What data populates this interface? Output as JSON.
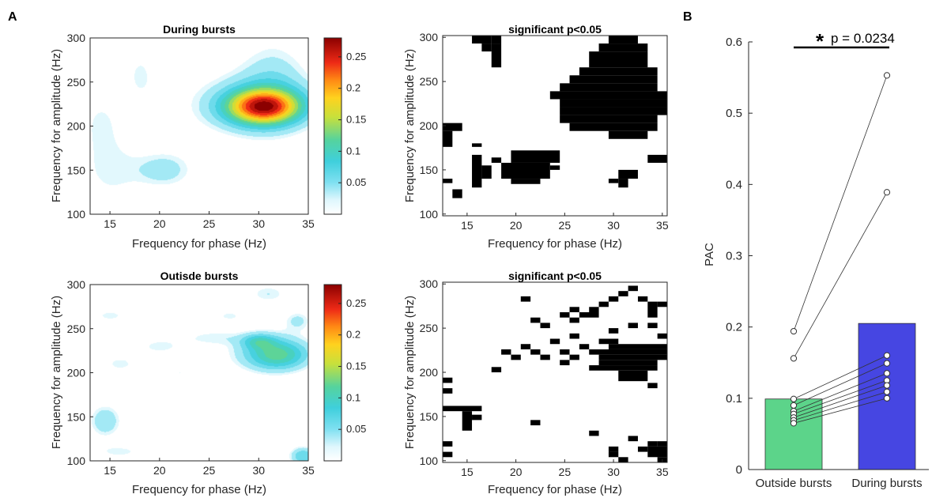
{
  "panel_labels": [
    "A",
    "B"
  ],
  "chart_data": [
    {
      "type": "heatmap",
      "title": "During bursts",
      "xlabel": "Frequency for phase (Hz)",
      "ylabel": "Frequency for amplitude (Hz)",
      "xlim": [
        13,
        35
      ],
      "ylim": [
        100,
        300
      ],
      "xticks": [
        15,
        20,
        25,
        30,
        35
      ],
      "yticks": [
        100,
        150,
        200,
        250,
        300
      ],
      "colorbar": {
        "ticks": [
          0.05,
          0.1,
          0.15,
          0.2,
          0.25
        ],
        "range": [
          0,
          0.28
        ],
        "colormap": [
          "#ffffff",
          "#bfeffc",
          "#5ad4ea",
          "#2cc6b8",
          "#9ed953",
          "#f2e12a",
          "#ffaa16",
          "#ff5516",
          "#e0161b",
          "#8b0000"
        ]
      },
      "blobs": [
        {
          "x": 30.5,
          "y": 222,
          "sx": 2.6,
          "sy": 14,
          "a": 0.23
        },
        {
          "x": 29.5,
          "y": 225,
          "sx": 5.5,
          "sy": 30,
          "a": 0.05
        },
        {
          "x": 31.5,
          "y": 260,
          "sx": 2.5,
          "sy": 35,
          "a": 0.035
        },
        {
          "x": 20.5,
          "y": 150,
          "sx": 2.2,
          "sy": 16,
          "a": 0.05
        },
        {
          "x": 15,
          "y": 150,
          "sx": 2.2,
          "sy": 28,
          "a": 0.035
        },
        {
          "x": 18,
          "y": 260,
          "sx": 1.5,
          "sy": 30,
          "a": 0.03
        },
        {
          "x": 14,
          "y": 205,
          "sx": 1.5,
          "sy": 25,
          "a": 0.03
        },
        {
          "x": 31,
          "y": 130,
          "sx": 3,
          "sy": 25,
          "a": 0.03
        }
      ]
    },
    {
      "type": "heatmap",
      "title": "significant p<0.05",
      "xlabel": "Frequency for phase (Hz)",
      "ylabel": "Frequency for amplitude (Hz)",
      "xlim": [
        12.5,
        35.5
      ],
      "ylim": [
        98,
        302
      ],
      "xticks": [
        15,
        20,
        25,
        30,
        35
      ],
      "yticks": [
        100,
        150,
        200,
        250,
        300
      ],
      "cells": [
        [
          15.5,
          17.5,
          293,
          302
        ],
        [
          16.5,
          17.5,
          284,
          293
        ],
        [
          17.5,
          18.5,
          293,
          302
        ],
        [
          17.5,
          18.5,
          266,
          293
        ],
        [
          29.5,
          32.5,
          293,
          302
        ],
        [
          28.5,
          33.5,
          284,
          293
        ],
        [
          27.5,
          33.5,
          266,
          284
        ],
        [
          26.5,
          34.5,
          257,
          266
        ],
        [
          25.5,
          34.5,
          248,
          257
        ],
        [
          24.5,
          34.5,
          239,
          248
        ],
        [
          23.5,
          35.5,
          230,
          239
        ],
        [
          24.5,
          35.5,
          221,
          230
        ],
        [
          24.5,
          35.5,
          212,
          221
        ],
        [
          24.5,
          34.5,
          203,
          212
        ],
        [
          25.5,
          34.5,
          194,
          203
        ],
        [
          29.5,
          33.5,
          185,
          194
        ],
        [
          12.5,
          14.5,
          194,
          203
        ],
        [
          12.5,
          13.5,
          176,
          194
        ],
        [
          15.5,
          16.5,
          176,
          180
        ],
        [
          15.5,
          16.5,
          130,
          167
        ],
        [
          16.5,
          17.5,
          140,
          155
        ],
        [
          17.5,
          18.5,
          158,
          164
        ],
        [
          19.5,
          24.5,
          158,
          172
        ],
        [
          18.5,
          23.5,
          140,
          158
        ],
        [
          19.5,
          22.5,
          134,
          140
        ],
        [
          23.5,
          24.5,
          150,
          155
        ],
        [
          12.5,
          13.5,
          135,
          140
        ],
        [
          13.5,
          14.5,
          118,
          128
        ],
        [
          29.5,
          30.5,
          135,
          140
        ],
        [
          30.5,
          32.5,
          140,
          150
        ],
        [
          30.5,
          31.5,
          130,
          140
        ],
        [
          33.5,
          35.5,
          158,
          167
        ]
      ]
    },
    {
      "type": "heatmap",
      "title": "Outisde bursts",
      "xlabel": "Frequency for phase (Hz)",
      "ylabel": "Frequency for amplitude (Hz)",
      "xlim": [
        13,
        35
      ],
      "ylim": [
        100,
        300
      ],
      "xticks": [
        15,
        20,
        25,
        30,
        35
      ],
      "yticks": [
        100,
        150,
        200,
        250,
        300
      ],
      "colorbar": {
        "ticks": [
          0.05,
          0.1,
          0.15,
          0.2,
          0.25
        ],
        "range": [
          0,
          0.28
        ]
      },
      "blobs": [
        {
          "x": 32,
          "y": 220,
          "sx": 2.2,
          "sy": 12,
          "a": 0.09
        },
        {
          "x": 30,
          "y": 236,
          "sx": 1.2,
          "sy": 6,
          "a": 0.06
        },
        {
          "x": 31,
          "y": 225,
          "sx": 3.5,
          "sy": 20,
          "a": 0.045
        },
        {
          "x": 14.5,
          "y": 145,
          "sx": 1.2,
          "sy": 14,
          "a": 0.06
        },
        {
          "x": 34.5,
          "y": 105,
          "sx": 1.0,
          "sy": 8,
          "a": 0.08
        },
        {
          "x": 31,
          "y": 290,
          "sx": 1.5,
          "sy": 8,
          "a": 0.04
        },
        {
          "x": 16,
          "y": 210,
          "sx": 1.5,
          "sy": 8,
          "a": 0.035
        },
        {
          "x": 20,
          "y": 230,
          "sx": 2,
          "sy": 8,
          "a": 0.035
        },
        {
          "x": 15,
          "y": 265,
          "sx": 1.5,
          "sy": 6,
          "a": 0.035
        },
        {
          "x": 22,
          "y": 200,
          "sx": 1.5,
          "sy": 6,
          "a": 0.03
        },
        {
          "x": 25,
          "y": 240,
          "sx": 2,
          "sy": 6,
          "a": 0.03
        },
        {
          "x": 18,
          "y": 185,
          "sx": 1.5,
          "sy": 6,
          "a": 0.03
        },
        {
          "x": 16,
          "y": 110,
          "sx": 2,
          "sy": 6,
          "a": 0.035
        },
        {
          "x": 27,
          "y": 265,
          "sx": 1.5,
          "sy": 6,
          "a": 0.03
        },
        {
          "x": 14,
          "y": 240,
          "sx": 1.0,
          "sy": 6,
          "a": 0.03
        },
        {
          "x": 25,
          "y": 110,
          "sx": 1.5,
          "sy": 5,
          "a": 0.025
        },
        {
          "x": 34,
          "y": 260,
          "sx": 1.0,
          "sy": 8,
          "a": 0.04
        },
        {
          "x": 18,
          "y": 285,
          "sx": 1.0,
          "sy": 5,
          "a": 0.03
        }
      ]
    },
    {
      "type": "heatmap",
      "title": "significant p<0.05",
      "xlabel": "Frequency for phase (Hz)",
      "ylabel": "Frequency for amplitude (Hz)",
      "xlim": [
        12.5,
        35.5
      ],
      "ylim": [
        98,
        302
      ],
      "xticks": [
        15,
        20,
        25,
        30,
        35
      ],
      "yticks": [
        100,
        150,
        200,
        250,
        300
      ],
      "cells": [
        [
          28.5,
          30.5,
          232,
          238
        ],
        [
          29.5,
          35.5,
          226,
          232
        ],
        [
          27.5,
          35.5,
          220,
          226
        ],
        [
          28.5,
          35.5,
          214,
          220
        ],
        [
          28.5,
          34.5,
          208,
          214
        ],
        [
          27.5,
          34.5,
          202,
          208
        ],
        [
          30.5,
          33.5,
          190,
          202
        ],
        [
          33.5,
          34.5,
          182,
          188
        ],
        [
          29.5,
          30.5,
          244,
          250
        ],
        [
          31.5,
          32.5,
          250,
          256
        ],
        [
          33.5,
          34.5,
          250,
          256
        ],
        [
          34.5,
          35.5,
          238,
          244
        ],
        [
          33.5,
          34.5,
          262,
          280
        ],
        [
          32.5,
          33.5,
          280,
          286
        ],
        [
          34.5,
          35.5,
          274,
          280
        ],
        [
          31.5,
          32.5,
          292,
          298
        ],
        [
          30.5,
          31.5,
          286,
          292
        ],
        [
          29.5,
          30.5,
          280,
          286
        ],
        [
          28.5,
          29.5,
          274,
          280
        ],
        [
          27.5,
          28.5,
          268,
          274
        ],
        [
          26.5,
          28.5,
          262,
          268
        ],
        [
          25.5,
          26.5,
          268,
          274
        ],
        [
          24.5,
          25.5,
          262,
          268
        ],
        [
          25.5,
          26.5,
          256,
          262
        ],
        [
          25.5,
          26.5,
          238,
          244
        ],
        [
          26.5,
          27.5,
          226,
          232
        ],
        [
          25.5,
          26.5,
          214,
          220
        ],
        [
          24.5,
          25.5,
          220,
          226
        ],
        [
          24.5,
          25.5,
          208,
          214
        ],
        [
          23.5,
          24.5,
          232,
          238
        ],
        [
          22.5,
          23.5,
          250,
          256
        ],
        [
          21.5,
          22.5,
          256,
          262
        ],
        [
          20.5,
          21.5,
          280,
          286
        ],
        [
          22.5,
          23.5,
          214,
          220
        ],
        [
          21.5,
          22.5,
          220,
          226
        ],
        [
          20.5,
          21.5,
          226,
          232
        ],
        [
          19.5,
          20.5,
          214,
          220
        ],
        [
          18.5,
          19.5,
          220,
          226
        ],
        [
          17.5,
          18.5,
          200,
          206
        ],
        [
          21.5,
          22.5,
          140,
          146
        ],
        [
          12.5,
          16.5,
          156,
          162
        ],
        [
          14.5,
          15.5,
          134,
          156
        ],
        [
          15.5,
          16.5,
          146,
          152
        ],
        [
          12.5,
          13.5,
          188,
          194
        ],
        [
          12.5,
          13.5,
          176,
          182
        ],
        [
          12.5,
          13.5,
          116,
          122
        ],
        [
          12.5,
          13.5,
          104,
          110
        ],
        [
          27.5,
          28.5,
          128,
          134
        ],
        [
          29.5,
          30.5,
          110,
          116
        ],
        [
          29.5,
          30.5,
          104,
          110
        ],
        [
          30.5,
          31.5,
          98,
          104
        ],
        [
          31.5,
          32.5,
          122,
          128
        ],
        [
          32.5,
          33.5,
          110,
          116
        ],
        [
          33.5,
          35.5,
          104,
          116
        ],
        [
          34.5,
          35.5,
          116,
          122
        ],
        [
          34.5,
          35.5,
          98,
          104
        ],
        [
          33.5,
          34.5,
          116,
          122
        ]
      ]
    },
    {
      "type": "bar",
      "ylabel": "PAC",
      "ylim": [
        0,
        0.6
      ],
      "yticks": [
        0,
        0.1,
        0.2,
        0.3,
        0.4,
        0.5,
        0.6
      ],
      "categories": [
        "Outside bursts",
        "During bursts"
      ],
      "values": [
        0.099,
        0.205
      ],
      "colors": [
        "#5cd48a",
        "#4646e2"
      ],
      "paired_points": [
        [
          0.194,
          0.553
        ],
        [
          0.156,
          0.389
        ],
        [
          0.099,
          0.16
        ],
        [
          0.09,
          0.149
        ],
        [
          0.082,
          0.135
        ],
        [
          0.078,
          0.125
        ],
        [
          0.073,
          0.118
        ],
        [
          0.069,
          0.109
        ],
        [
          0.065,
          0.1
        ]
      ],
      "annotation": {
        "star": "*",
        "text": "p = 0.0234"
      }
    }
  ]
}
